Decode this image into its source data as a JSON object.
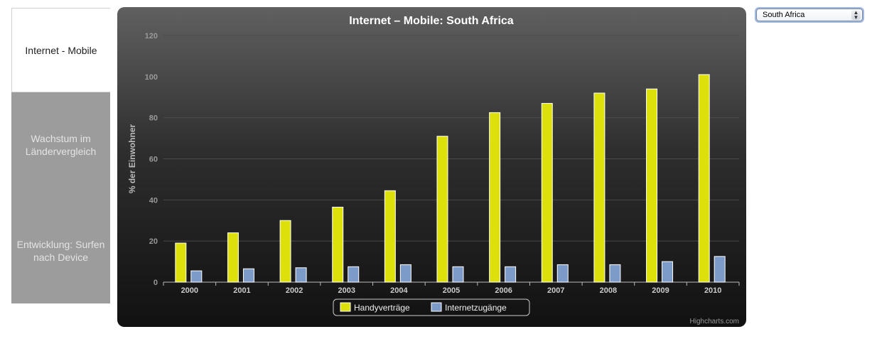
{
  "sidebar": {
    "tabs": [
      {
        "label": "Internet - Mobile"
      },
      {
        "label": "Wachstum im Ländervergleich"
      },
      {
        "label": "Entwicklung: Surfen nach Device"
      }
    ]
  },
  "country_select": {
    "value": "South Africa"
  },
  "credits": "Highcharts.com",
  "chart_data": {
    "type": "bar",
    "title": "Internet – Mobile: South Africa",
    "ylabel": "% der Einwohner",
    "xlabel": "",
    "ylim": [
      0,
      120
    ],
    "yticks": [
      0,
      20,
      40,
      60,
      80,
      100,
      120
    ],
    "categories": [
      "2000",
      "2001",
      "2002",
      "2003",
      "2004",
      "2005",
      "2006",
      "2007",
      "2008",
      "2009",
      "2010"
    ],
    "grid": true,
    "legend_position": "bottom-center",
    "series": [
      {
        "name": "Handyverträge",
        "color": "#dde00a",
        "values": [
          19,
          24,
          30,
          36.5,
          44.5,
          71,
          82.5,
          87,
          92,
          94,
          101
        ]
      },
      {
        "name": "Internetzugänge",
        "color": "#7d9bc8",
        "values": [
          5.5,
          6.5,
          7,
          7.5,
          8.5,
          7.5,
          7.5,
          8.5,
          8.5,
          10,
          12.5
        ]
      }
    ]
  }
}
